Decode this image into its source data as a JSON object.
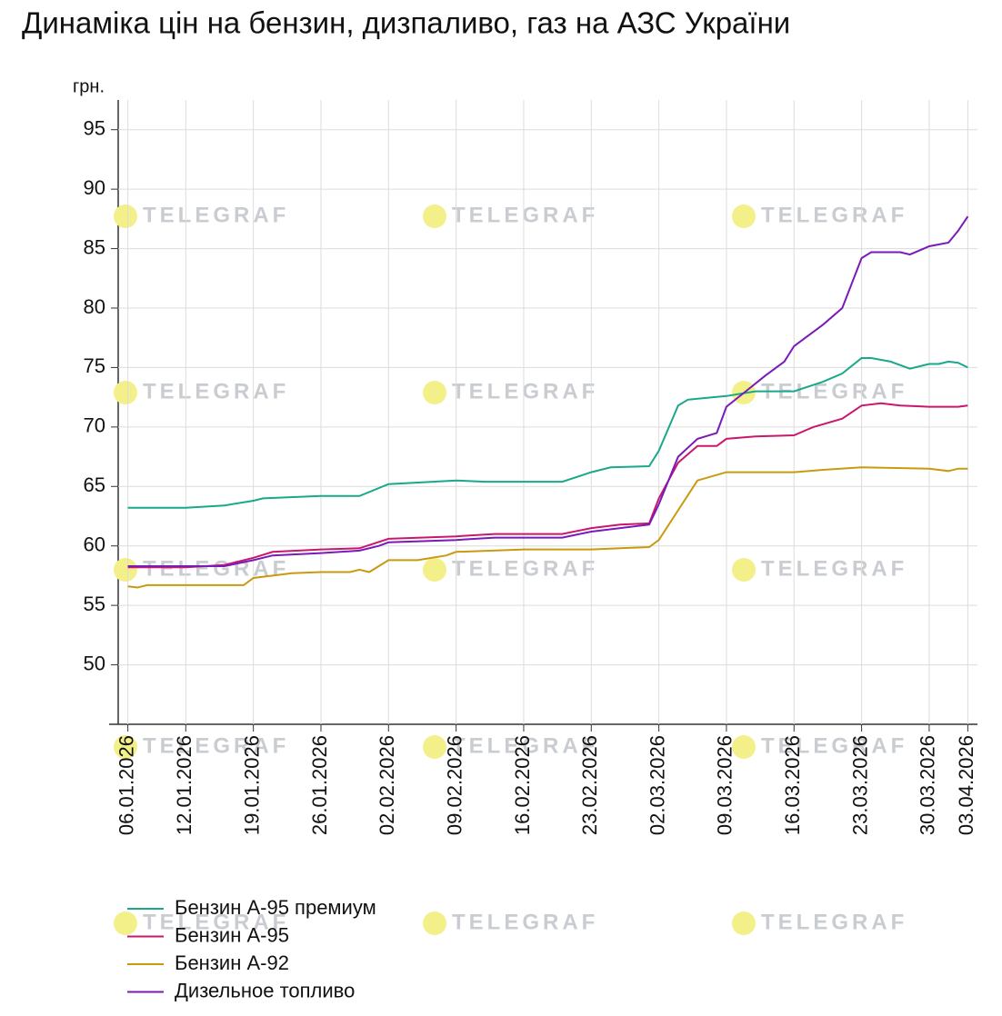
{
  "chart_data": {
    "type": "line",
    "title": "Динаміка цін на бензин, дизпаливо, газ на АЗС України",
    "y_label": "грн.",
    "watermark": "TELEGRAF",
    "xlim": [
      "2026-01-05",
      "2026-04-04"
    ],
    "ylim": [
      45,
      97.5
    ],
    "yticks": [
      50,
      55,
      60,
      65,
      70,
      75,
      80,
      85,
      90,
      95
    ],
    "xticks": [
      {
        "value": "2026-01-06",
        "label": "06.01.2026"
      },
      {
        "value": "2026-01-12",
        "label": "12.01.2026"
      },
      {
        "value": "2026-01-19",
        "label": "19.01.2026"
      },
      {
        "value": "2026-01-26",
        "label": "26.01.2026"
      },
      {
        "value": "2026-02-02",
        "label": "02.02.2026"
      },
      {
        "value": "2026-02-09",
        "label": "09.02.2026"
      },
      {
        "value": "2026-02-16",
        "label": "16.02.2026"
      },
      {
        "value": "2026-02-23",
        "label": "23.02.2026"
      },
      {
        "value": "2026-03-02",
        "label": "02.03.2026"
      },
      {
        "value": "2026-03-09",
        "label": "09.03.2026"
      },
      {
        "value": "2026-03-16",
        "label": "16.03.2026"
      },
      {
        "value": "2026-03-23",
        "label": "23.03.2026"
      },
      {
        "value": "2026-03-30",
        "label": "30.03.2026"
      },
      {
        "value": "2026-04-03",
        "label": "03.04.2026"
      }
    ],
    "grid": true,
    "legend": "bottom-left",
    "series": [
      {
        "name": "Бензин А-95 премиум",
        "color": "#1aa88a",
        "x": [
          "2026-01-06",
          "2026-01-12",
          "2026-01-16",
          "2026-01-19",
          "2026-01-20",
          "2026-01-26",
          "2026-01-30",
          "2026-02-02",
          "2026-02-09",
          "2026-02-12",
          "2026-02-16",
          "2026-02-20",
          "2026-02-23",
          "2026-02-25",
          "2026-03-01",
          "2026-03-02",
          "2026-03-04",
          "2026-03-05",
          "2026-03-09",
          "2026-03-12",
          "2026-03-16",
          "2026-03-19",
          "2026-03-21",
          "2026-03-23",
          "2026-03-24",
          "2026-03-26",
          "2026-03-28",
          "2026-03-30",
          "2026-03-31",
          "2026-04-01",
          "2026-04-02",
          "2026-04-03"
        ],
        "values": [
          63.2,
          63.2,
          63.4,
          63.8,
          64.0,
          64.2,
          64.2,
          65.2,
          65.5,
          65.4,
          65.4,
          65.4,
          66.2,
          66.6,
          66.7,
          68.0,
          71.8,
          72.3,
          72.6,
          73.0,
          73.0,
          73.8,
          74.5,
          75.8,
          75.8,
          75.5,
          74.9,
          75.3,
          75.3,
          75.5,
          75.4,
          75.0
        ]
      },
      {
        "name": "Бензин А-95",
        "color": "#c8186e",
        "x": [
          "2026-01-06",
          "2026-01-12",
          "2026-01-16",
          "2026-01-19",
          "2026-01-21",
          "2026-01-26",
          "2026-01-30",
          "2026-02-02",
          "2026-02-09",
          "2026-02-13",
          "2026-02-16",
          "2026-02-20",
          "2026-02-23",
          "2026-02-26",
          "2026-03-01",
          "2026-03-02",
          "2026-03-04",
          "2026-03-06",
          "2026-03-08",
          "2026-03-09",
          "2026-03-12",
          "2026-03-16",
          "2026-03-18",
          "2026-03-21",
          "2026-03-23",
          "2026-03-25",
          "2026-03-27",
          "2026-03-30",
          "2026-04-02",
          "2026-04-03"
        ],
        "values": [
          58.2,
          58.2,
          58.4,
          59.0,
          59.5,
          59.7,
          59.8,
          60.6,
          60.8,
          61.0,
          61.0,
          61.0,
          61.5,
          61.8,
          61.9,
          64.0,
          67.0,
          68.4,
          68.4,
          69.0,
          69.2,
          69.3,
          70.0,
          70.7,
          71.8,
          72.0,
          71.8,
          71.7,
          71.7,
          71.8
        ]
      },
      {
        "name": "Бензин А-92",
        "color": "#c99a10",
        "x": [
          "2026-01-06",
          "2026-01-07",
          "2026-01-08",
          "2026-01-12",
          "2026-01-18",
          "2026-01-19",
          "2026-01-21",
          "2026-01-23",
          "2026-01-26",
          "2026-01-29",
          "2026-01-30",
          "2026-01-31",
          "2026-02-02",
          "2026-02-05",
          "2026-02-08",
          "2026-02-09",
          "2026-02-16",
          "2026-02-23",
          "2026-02-26",
          "2026-03-01",
          "2026-03-02",
          "2026-03-04",
          "2026-03-06",
          "2026-03-09",
          "2026-03-16",
          "2026-03-19",
          "2026-03-23",
          "2026-03-30",
          "2026-04-01",
          "2026-04-02",
          "2026-04-03"
        ],
        "values": [
          56.6,
          56.5,
          56.7,
          56.7,
          56.7,
          57.3,
          57.5,
          57.7,
          57.8,
          57.8,
          58.0,
          57.8,
          58.8,
          58.8,
          59.2,
          59.5,
          59.7,
          59.7,
          59.8,
          59.9,
          60.5,
          63.0,
          65.5,
          66.2,
          66.2,
          66.4,
          66.6,
          66.5,
          66.3,
          66.5,
          66.5
        ]
      },
      {
        "name": "Дизельное топливо",
        "color": "#7a1ab8",
        "x": [
          "2026-01-06",
          "2026-01-12",
          "2026-01-16",
          "2026-01-19",
          "2026-01-21",
          "2026-01-26",
          "2026-01-30",
          "2026-02-01",
          "2026-02-02",
          "2026-02-09",
          "2026-02-13",
          "2026-02-16",
          "2026-02-20",
          "2026-02-23",
          "2026-02-26",
          "2026-03-01",
          "2026-03-02",
          "2026-03-04",
          "2026-03-06",
          "2026-03-08",
          "2026-03-09",
          "2026-03-11",
          "2026-03-13",
          "2026-03-15",
          "2026-03-16",
          "2026-03-18",
          "2026-03-19",
          "2026-03-21",
          "2026-03-23",
          "2026-03-24",
          "2026-03-27",
          "2026-03-28",
          "2026-03-30",
          "2026-04-01",
          "2026-04-02",
          "2026-04-03"
        ],
        "values": [
          58.3,
          58.3,
          58.3,
          58.8,
          59.2,
          59.4,
          59.6,
          60.0,
          60.3,
          60.5,
          60.7,
          60.7,
          60.7,
          61.2,
          61.5,
          61.8,
          63.5,
          67.5,
          69.0,
          69.5,
          71.7,
          73.0,
          74.3,
          75.5,
          76.8,
          78.0,
          78.6,
          80.0,
          84.2,
          84.7,
          84.7,
          84.5,
          85.2,
          85.5,
          86.5,
          87.7
        ]
      }
    ]
  }
}
